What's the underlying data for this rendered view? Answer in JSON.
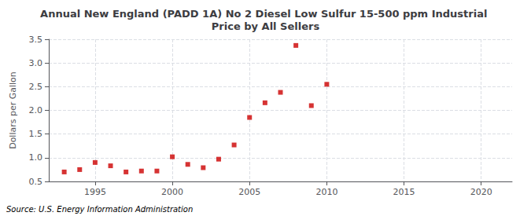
{
  "chart_data": {
    "type": "scatter",
    "title": "Annual New England (PADD 1A) No 2 Diesel Low Sulfur 15-500 ppm Industrial Price by All Sellers",
    "ylabel": "Dollars per Gallon",
    "source": "Source: U.S. Energy Information Administration",
    "color": "#cc0000",
    "marker": "square",
    "x": [
      1993,
      1994,
      1995,
      1996,
      1997,
      1998,
      1999,
      2000,
      2001,
      2002,
      2003,
      2004,
      2005,
      2006,
      2007,
      2008,
      2009,
      2010
    ],
    "values": [
      0.7,
      0.75,
      0.9,
      0.83,
      0.7,
      0.72,
      0.72,
      1.02,
      0.86,
      0.79,
      0.97,
      1.27,
      1.85,
      2.16,
      2.38,
      3.37,
      2.1,
      2.55
    ],
    "xlim": [
      1992,
      2022
    ],
    "ylim": [
      0.5,
      3.5
    ],
    "xticks": [
      1995,
      2000,
      2005,
      2010,
      2015,
      2020
    ],
    "yticks": [
      0.5,
      {
        "value": 1.0,
        "label": "1.0"
      },
      1.5,
      {
        "value": 2.0,
        "label": "2.0"
      },
      2.5,
      {
        "value": 3.0,
        "label": "3.0"
      },
      3.5
    ],
    "grid": true
  }
}
